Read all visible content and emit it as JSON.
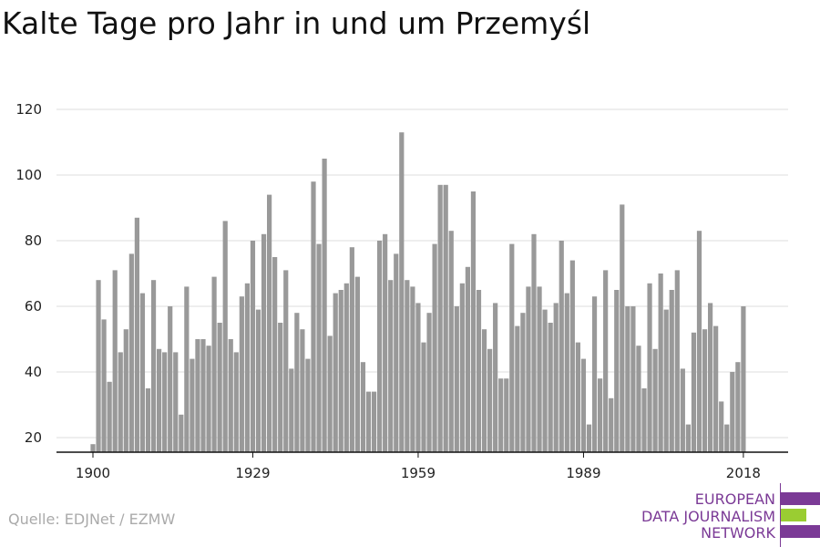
{
  "title": "Kalte Tage pro Jahr in und um Przemyśl",
  "source": "Quelle: EDJNet / EZMW",
  "logo": {
    "line1": "EUROPEAN",
    "line2": "DATA JOURNALISM",
    "line3": "NETWORK",
    "purple": "#7b3a96",
    "green": "#9acd32"
  },
  "colors": {
    "bar": "#999999",
    "grid": "#dddddd",
    "axis": "#111111"
  },
  "chart_data": {
    "type": "bar",
    "xlabel": "",
    "ylabel": "",
    "ylim": [
      15,
      120
    ],
    "yticks": [
      20,
      40,
      60,
      80,
      100,
      120
    ],
    "xticks": [
      1900,
      1929,
      1959,
      1989,
      2018
    ],
    "xlim": [
      1895,
      2023
    ],
    "grid": true,
    "x": [
      1900,
      1901,
      1902,
      1903,
      1904,
      1905,
      1906,
      1907,
      1908,
      1909,
      1910,
      1911,
      1912,
      1913,
      1914,
      1915,
      1916,
      1917,
      1918,
      1919,
      1920,
      1921,
      1922,
      1923,
      1924,
      1925,
      1926,
      1927,
      1928,
      1929,
      1930,
      1931,
      1932,
      1933,
      1934,
      1935,
      1936,
      1937,
      1938,
      1939,
      1940,
      1941,
      1942,
      1943,
      1944,
      1945,
      1946,
      1947,
      1948,
      1949,
      1950,
      1951,
      1952,
      1953,
      1954,
      1955,
      1956,
      1957,
      1958,
      1959,
      1960,
      1961,
      1962,
      1963,
      1964,
      1965,
      1966,
      1967,
      1968,
      1969,
      1970,
      1971,
      1972,
      1973,
      1974,
      1975,
      1976,
      1977,
      1978,
      1979,
      1980,
      1981,
      1982,
      1983,
      1984,
      1985,
      1986,
      1987,
      1988,
      1989,
      1990,
      1991,
      1992,
      1993,
      1994,
      1995,
      1996,
      1997,
      1998,
      1999,
      2000,
      2001,
      2002,
      2003,
      2004,
      2005,
      2006,
      2007,
      2008,
      2009,
      2010,
      2011,
      2012,
      2013,
      2014,
      2015,
      2016,
      2017,
      2018
    ],
    "values": [
      18,
      68,
      56,
      37,
      71,
      46,
      53,
      76,
      87,
      64,
      35,
      68,
      47,
      46,
      60,
      46,
      27,
      66,
      44,
      50,
      50,
      48,
      69,
      55,
      86,
      50,
      46,
      63,
      67,
      80,
      59,
      82,
      94,
      75,
      55,
      71,
      41,
      58,
      53,
      44,
      98,
      79,
      105,
      51,
      64,
      65,
      67,
      78,
      69,
      43,
      34,
      34,
      80,
      82,
      68,
      76,
      113,
      68,
      66,
      61,
      49,
      58,
      79,
      97,
      97,
      83,
      60,
      67,
      72,
      95,
      65,
      53,
      47,
      61,
      38,
      38,
      79,
      54,
      58,
      66,
      82,
      66,
      59,
      55,
      61,
      80,
      64,
      74,
      49,
      44,
      24,
      63,
      38,
      71,
      32,
      65,
      91,
      60,
      60,
      48,
      35,
      67,
      47,
      70,
      59,
      65,
      71,
      41,
      24,
      52,
      83,
      53,
      61,
      54,
      31,
      24,
      40,
      43,
      60
    ]
  }
}
